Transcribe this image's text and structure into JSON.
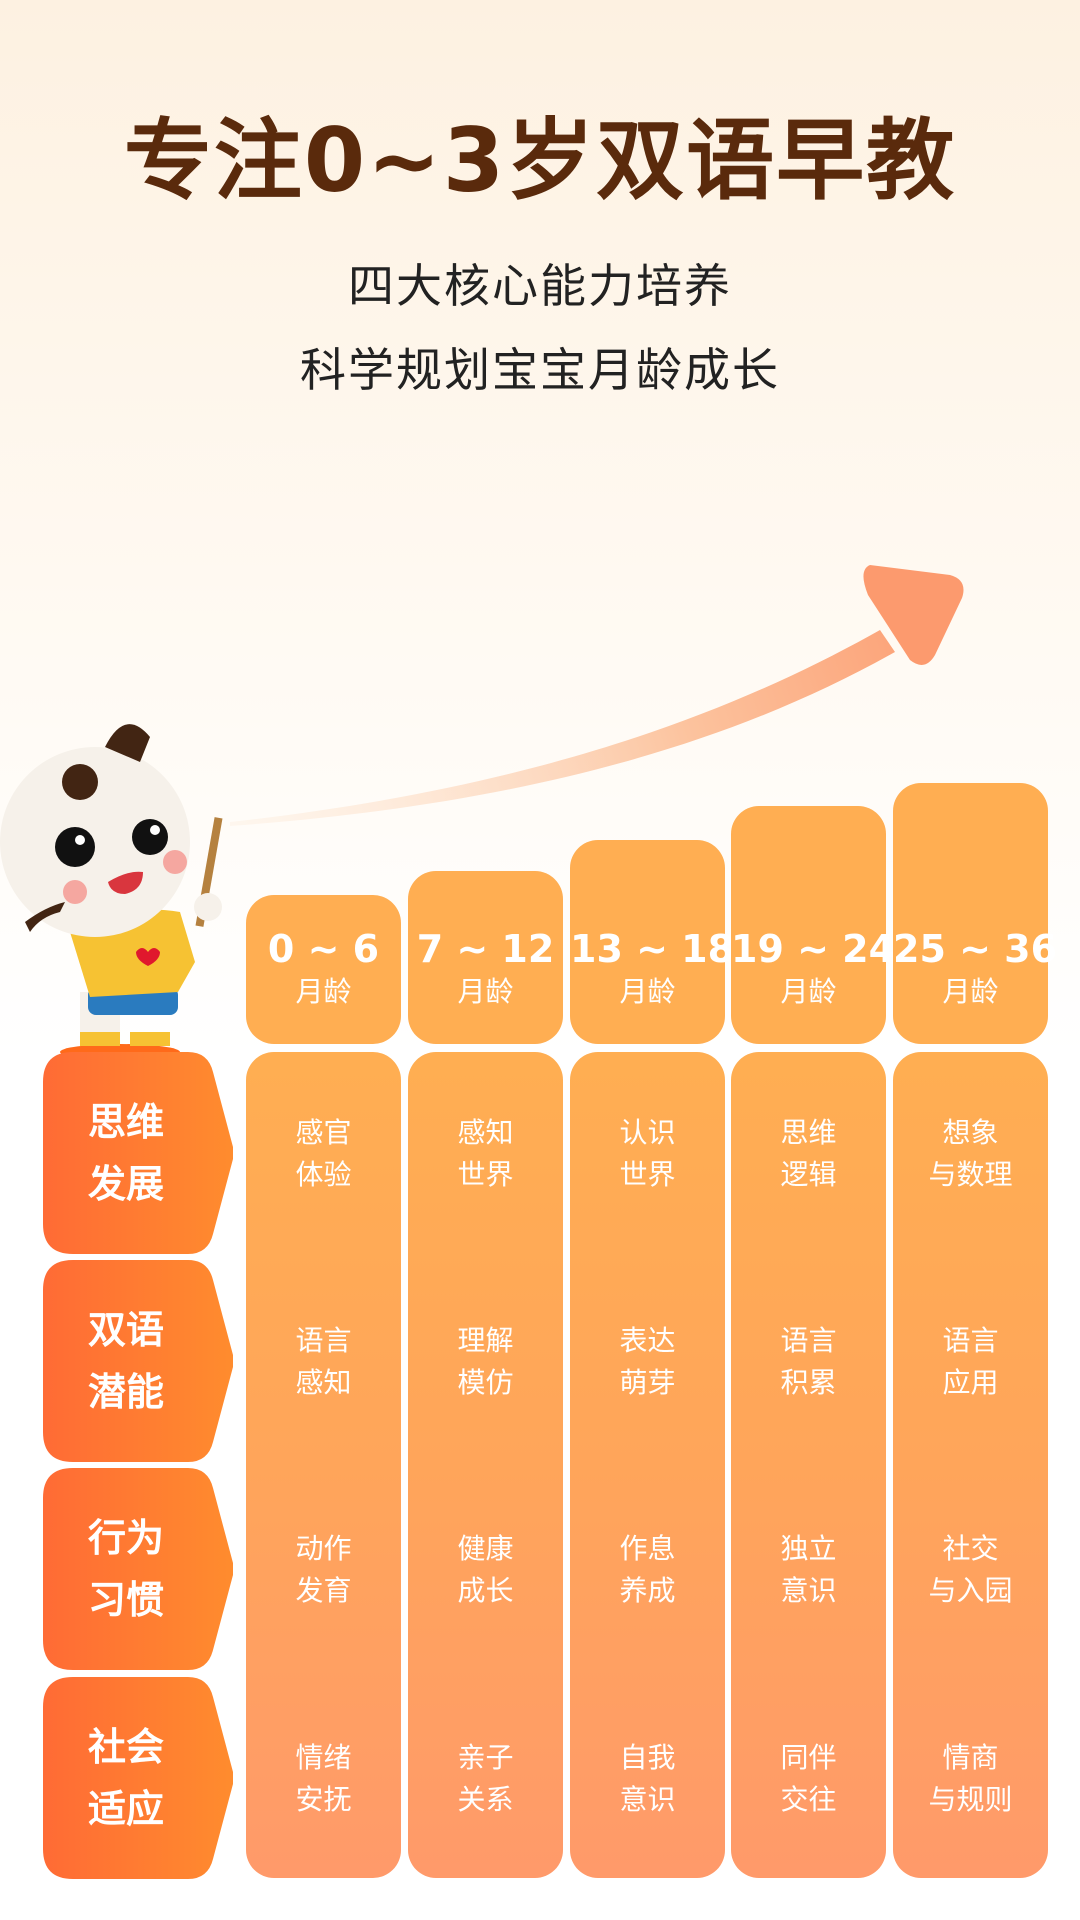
{
  "title": "专注0~3岁双语早教",
  "subtitle": [
    "四大核心能力培养",
    "科学规划宝宝月龄成长"
  ],
  "colors": {
    "title": "#5a2a0c",
    "header": "#ffae52",
    "label_start": "#ff6b35",
    "label_end": "#ff8c2e",
    "arrow": "#fc9a6e"
  },
  "age_groups": [
    {
      "range": "0 ~ 6",
      "unit": "月龄"
    },
    {
      "range": "7 ~ 12",
      "unit": "月龄"
    },
    {
      "range": "13 ~ 18",
      "unit": "月龄"
    },
    {
      "range": "19 ~ 24",
      "unit": "月龄"
    },
    {
      "range": "25 ~ 36",
      "unit": "月龄"
    }
  ],
  "abilities": [
    {
      "label": [
        "思维",
        "发展"
      ],
      "items": [
        [
          "感官",
          "体验"
        ],
        [
          "感知",
          "世界"
        ],
        [
          "认识",
          "世界"
        ],
        [
          "思维",
          "逻辑"
        ],
        [
          "想象",
          "与数理"
        ]
      ]
    },
    {
      "label": [
        "双语",
        "潜能"
      ],
      "items": [
        [
          "语言",
          "感知"
        ],
        [
          "理解",
          "模仿"
        ],
        [
          "表达",
          "萌芽"
        ],
        [
          "语言",
          "积累"
        ],
        [
          "语言",
          "应用"
        ]
      ]
    },
    {
      "label": [
        "行为",
        "习惯"
      ],
      "items": [
        [
          "动作",
          "发育"
        ],
        [
          "健康",
          "成长"
        ],
        [
          "作息",
          "养成"
        ],
        [
          "独立",
          "意识"
        ],
        [
          "社交",
          "与入园"
        ]
      ]
    },
    {
      "label": [
        "社会",
        "适应"
      ],
      "items": [
        [
          "情绪",
          "安抚"
        ],
        [
          "亲子",
          "关系"
        ],
        [
          "自我",
          "意识"
        ],
        [
          "同伴",
          "交往"
        ],
        [
          "情商",
          "与规则"
        ]
      ]
    }
  ]
}
